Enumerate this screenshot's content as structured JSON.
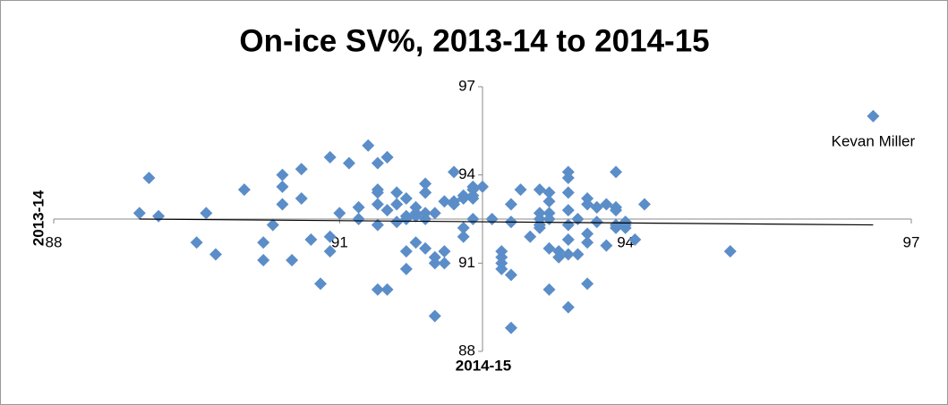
{
  "chart_data": {
    "type": "scatter",
    "title": "On-ice SV%, 2013-14 to 2014-15",
    "x_label": "2014-15",
    "y_label": "2013-14",
    "xlim": [
      88,
      97
    ],
    "ylim": [
      88,
      97
    ],
    "xticks": [
      88,
      91,
      94,
      97
    ],
    "yticks": [
      88,
      91,
      94,
      97
    ],
    "axis_cross": {
      "x": 92.5,
      "y": 92.5
    },
    "x": [
      88.9,
      89.0,
      89.1,
      89.5,
      89.6,
      89.7,
      90.0,
      90.2,
      90.2,
      90.3,
      90.4,
      90.4,
      90.4,
      90.5,
      90.6,
      90.6,
      90.7,
      90.8,
      90.9,
      90.9,
      90.9,
      91.0,
      91.1,
      91.2,
      91.2,
      91.3,
      91.4,
      91.4,
      91.4,
      91.4,
      91.4,
      91.4,
      91.5,
      91.5,
      91.5,
      91.5,
      91.6,
      91.6,
      91.6,
      91.7,
      91.7,
      91.7,
      91.7,
      91.7,
      91.8,
      91.8,
      91.8,
      91.8,
      91.9,
      91.9,
      91.9,
      91.9,
      91.9,
      91.9,
      92.0,
      92.0,
      92.0,
      92.0,
      92.1,
      92.1,
      92.1,
      92.2,
      92.2,
      92.2,
      92.3,
      92.3,
      92.3,
      92.3,
      92.4,
      92.4,
      92.4,
      92.4,
      92.4,
      92.5,
      92.6,
      92.7,
      92.7,
      92.7,
      92.7,
      92.8,
      92.8,
      92.8,
      92.8,
      92.8,
      92.9,
      93.0,
      93.1,
      93.1,
      93.1,
      93.1,
      93.1,
      93.2,
      93.2,
      93.2,
      93.2,
      93.2,
      93.2,
      93.3,
      93.3,
      93.4,
      93.4,
      93.4,
      93.4,
      93.4,
      93.4,
      93.4,
      93.4,
      93.5,
      93.5,
      93.6,
      93.6,
      93.6,
      93.6,
      93.6,
      93.7,
      93.7,
      93.7,
      93.8,
      93.8,
      93.9,
      93.9,
      93.9,
      93.9,
      93.9,
      94.0,
      94.0,
      94.0,
      94.0,
      94.1,
      94.2,
      95.1,
      96.6
    ],
    "series": [
      {
        "color": "#5b8ec8",
        "values": [
          92.7,
          93.9,
          92.6,
          91.7,
          92.7,
          91.3,
          93.5,
          91.1,
          91.7,
          92.3,
          93.0,
          93.6,
          94.0,
          91.1,
          94.2,
          93.2,
          91.8,
          90.3,
          94.6,
          91.9,
          91.4,
          92.7,
          94.4,
          92.5,
          92.9,
          95.0,
          93.4,
          93.0,
          93.5,
          92.3,
          90.1,
          94.4,
          92.8,
          94.6,
          90.1,
          94.6,
          92.4,
          93.0,
          93.4,
          90.8,
          93.2,
          92.5,
          92.6,
          91.4,
          92.9,
          92.7,
          91.7,
          92.6,
          93.4,
          93.4,
          93.7,
          92.5,
          91.5,
          92.7,
          92.7,
          89.2,
          91.2,
          91.0,
          91.0,
          91.4,
          93.1,
          94.1,
          93.0,
          93.1,
          91.9,
          93.3,
          93.2,
          92.2,
          92.5,
          93.3,
          93.5,
          93.2,
          93.6,
          93.6,
          92.5,
          90.8,
          91.0,
          91.2,
          91.4,
          90.6,
          92.4,
          88.8,
          93.0,
          92.4,
          93.5,
          91.9,
          92.2,
          92.5,
          92.7,
          92.3,
          93.5,
          90.1,
          91.5,
          92.5,
          92.7,
          93.1,
          93.4,
          91.2,
          91.4,
          92.3,
          91.3,
          91.8,
          92.8,
          93.9,
          94.1,
          93.4,
          89.5,
          91.3,
          92.5,
          91.7,
          93.2,
          90.3,
          93.0,
          92.0,
          92.9,
          92.9,
          92.4,
          91.6,
          93.0,
          92.3,
          92.2,
          92.8,
          92.9,
          94.1,
          92.2,
          92.4,
          92.3,
          92.4,
          91.8,
          93.0,
          91.4,
          96.0
        ]
      }
    ],
    "trendline": {
      "color": "#000000",
      "x": [
        88.9,
        96.6
      ],
      "y": [
        92.5,
        92.3
      ]
    },
    "annotations": [
      {
        "text": "Kevan Miller",
        "x": 96.6,
        "y": 96.0
      }
    ]
  }
}
